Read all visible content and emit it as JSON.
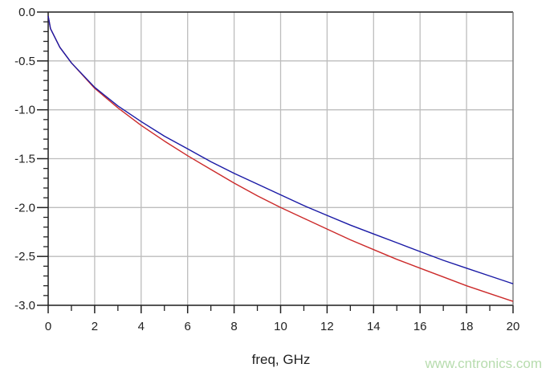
{
  "chart_data": {
    "type": "line",
    "title": "",
    "xlabel": "freq, GHz",
    "ylabel": "",
    "xlim": [
      0,
      20
    ],
    "ylim": [
      -3.0,
      0.0
    ],
    "xticks": [
      "0",
      "2",
      "4",
      "6",
      "8",
      "10",
      "12",
      "14",
      "16",
      "18",
      "20"
    ],
    "yticks": [
      "0.0",
      "-0.5",
      "-1.0",
      "-1.5",
      "-2.0",
      "-2.5",
      "-3.0"
    ],
    "grid": true,
    "series": [
      {
        "color": "#1a1aa6",
        "x": [
          0,
          0.1,
          0.5,
          1,
          2,
          3,
          4,
          5,
          6,
          7,
          8,
          9,
          10,
          11,
          12,
          13,
          14,
          15,
          16,
          17,
          18,
          19,
          20
        ],
        "y": [
          -0.04,
          -0.17,
          -0.36,
          -0.52,
          -0.77,
          -0.96,
          -1.12,
          -1.27,
          -1.4,
          -1.53,
          -1.65,
          -1.76,
          -1.87,
          -1.98,
          -2.08,
          -2.18,
          -2.27,
          -2.36,
          -2.45,
          -2.54,
          -2.62,
          -2.7,
          -2.78
        ]
      },
      {
        "color": "#cc2a2a",
        "x": [
          0,
          0.1,
          0.5,
          1,
          2,
          3,
          4,
          5,
          6,
          7,
          8,
          9,
          10,
          11,
          12,
          13,
          14,
          15,
          16,
          17,
          18,
          19,
          20
        ],
        "y": [
          -0.04,
          -0.17,
          -0.36,
          -0.52,
          -0.78,
          -0.98,
          -1.16,
          -1.32,
          -1.47,
          -1.61,
          -1.75,
          -1.88,
          -2.0,
          -2.11,
          -2.22,
          -2.33,
          -2.43,
          -2.53,
          -2.62,
          -2.71,
          -2.8,
          -2.88,
          -2.96
        ]
      }
    ]
  },
  "watermark": "www.cntronics.com"
}
